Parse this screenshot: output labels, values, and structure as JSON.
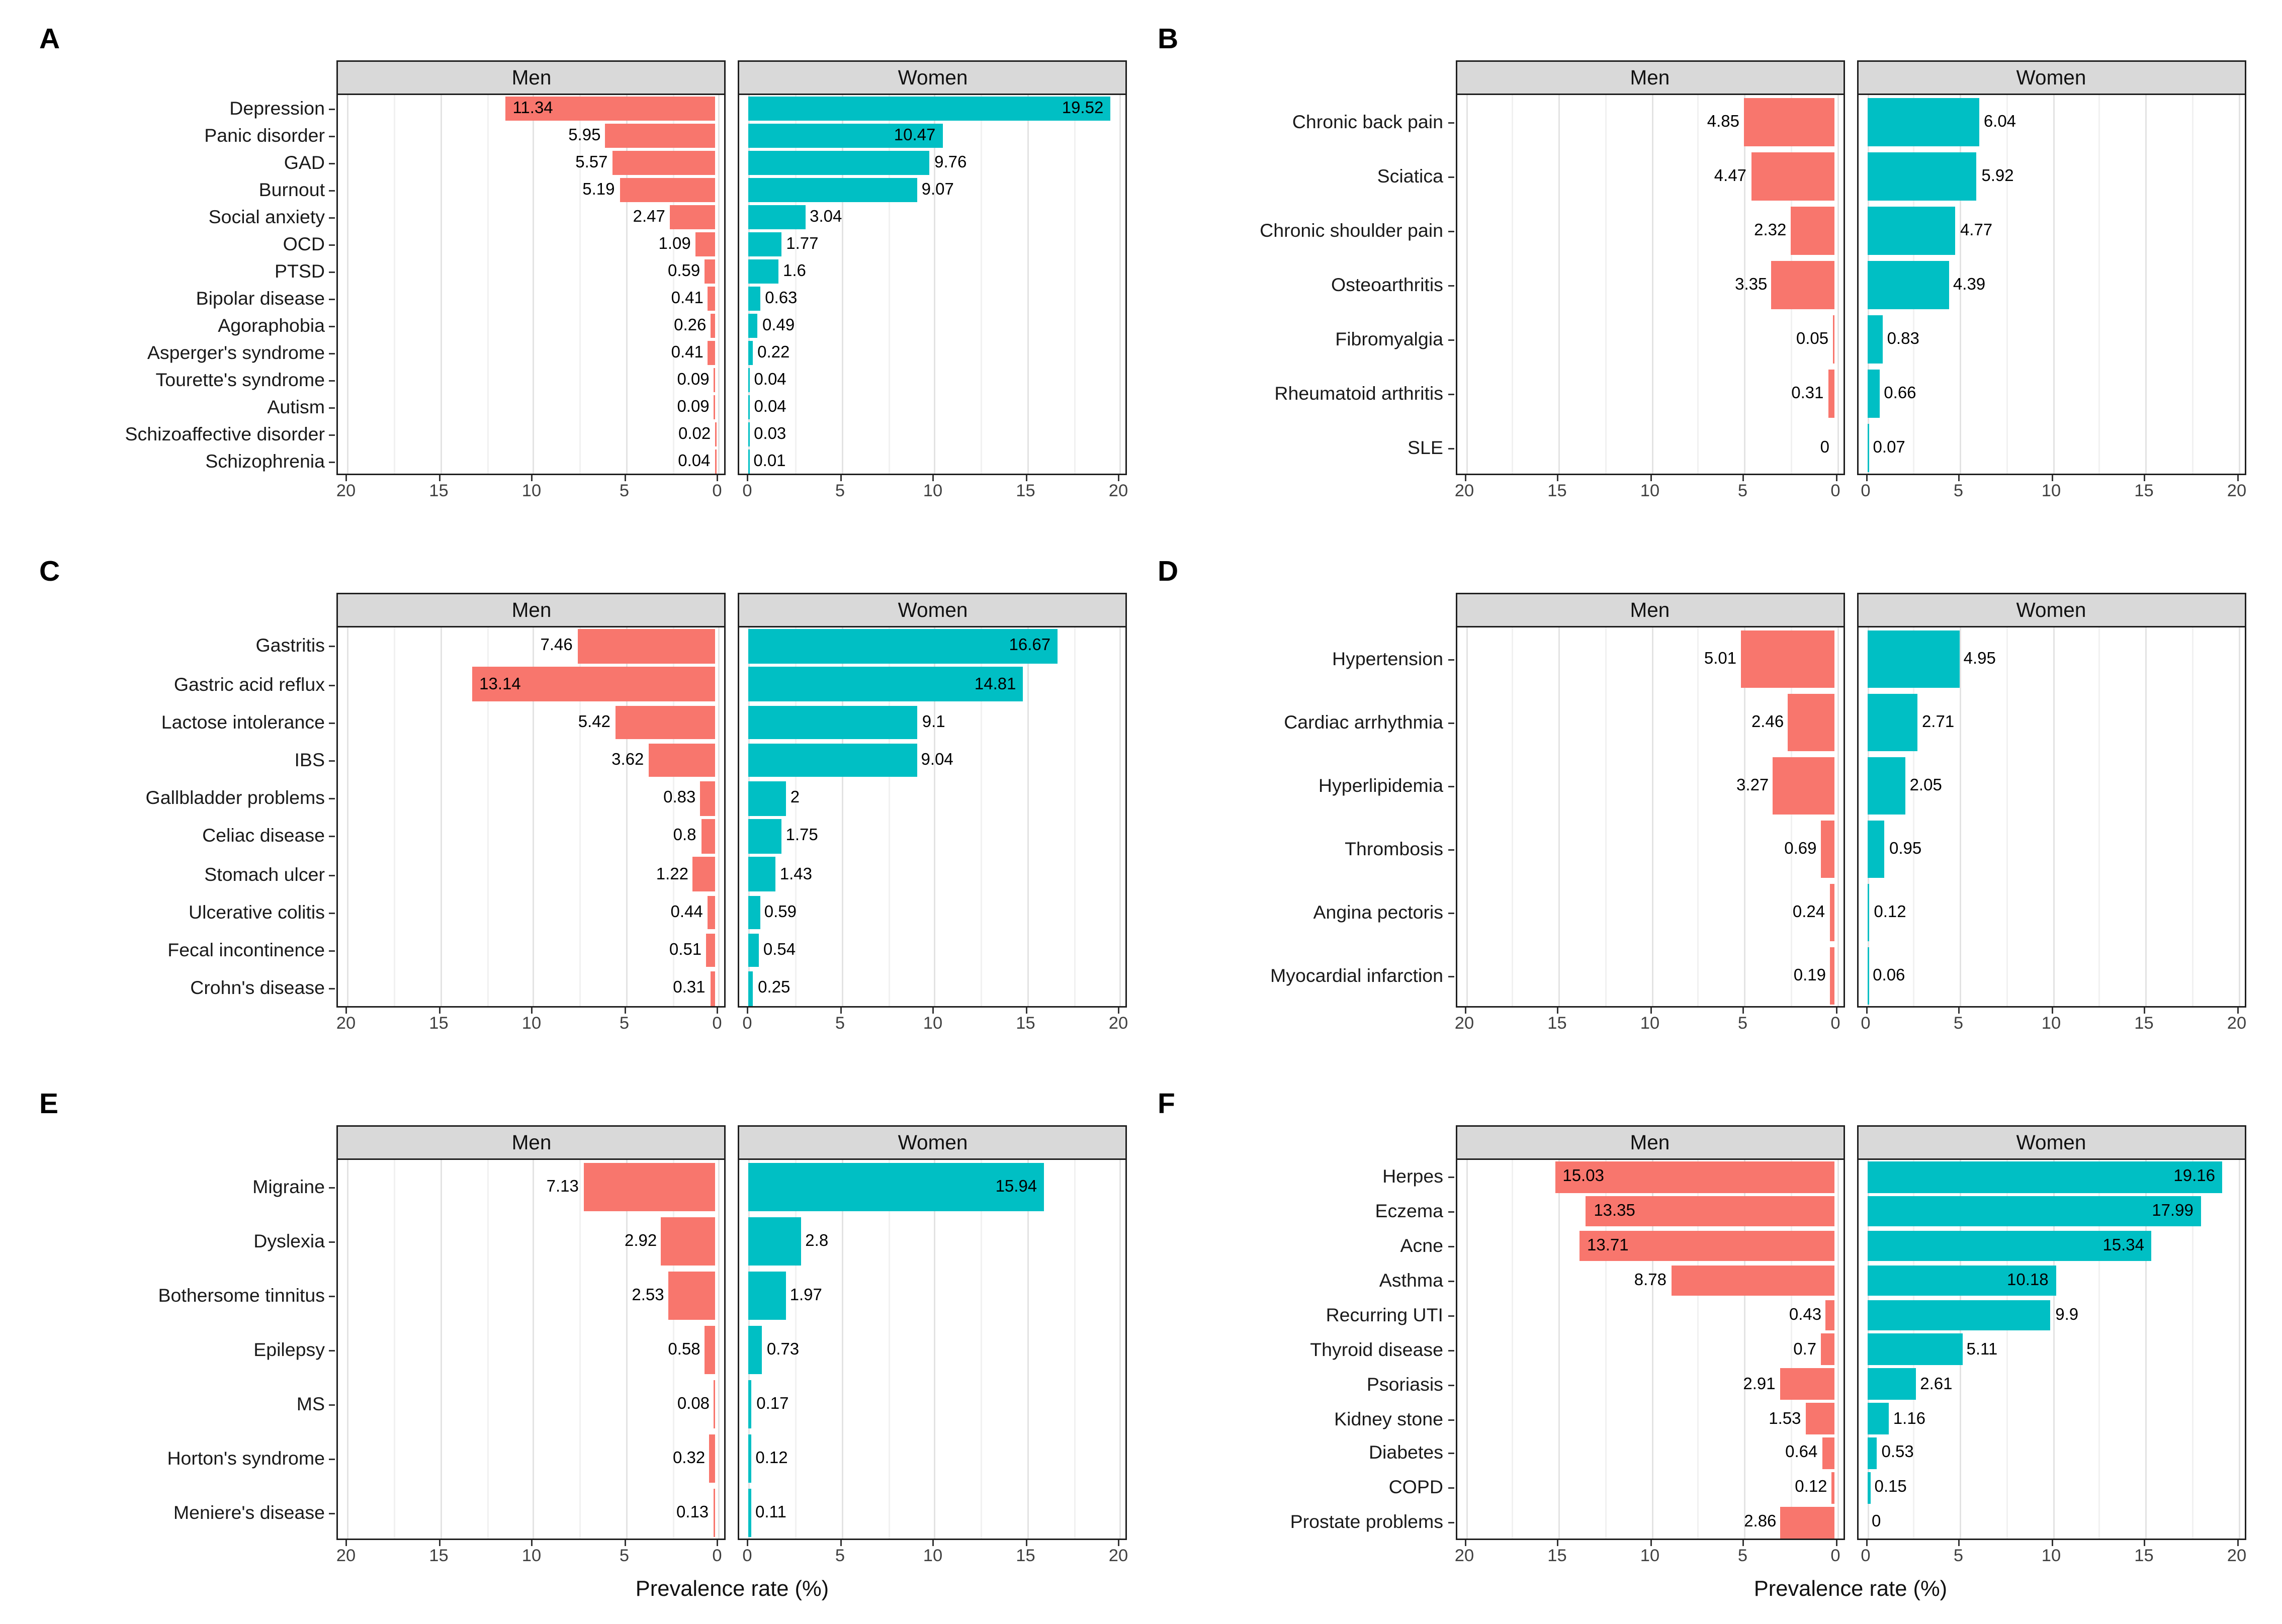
{
  "figure": {
    "axis_title": "Prevalence rate (%)",
    "facet_labels": [
      "Men",
      "Women"
    ],
    "x_ticks": [
      "0",
      "5",
      "10",
      "15",
      "20"
    ],
    "xlim": [
      0,
      20
    ],
    "colors": {
      "men_bar": "#F8766D",
      "women_bar": "#00BFC4",
      "facet_header_bg": "#D9D9D9",
      "panel_border": "#1F1F1F",
      "gridline_major": "#E3E3E3",
      "gridline_minor": "#F1F1F1"
    }
  },
  "chart_data": [
    {
      "type": "bar",
      "panel": "A",
      "facets": [
        "Men",
        "Women"
      ],
      "categories": [
        "Depression",
        "Panic disorder",
        "GAD",
        "Burnout",
        "Social anxiety",
        "OCD",
        "PTSD",
        "Bipolar disease",
        "Agoraphobia",
        "Asperger's syndrome",
        "Tourette's syndrome",
        "Autism",
        "Schizoaffective disorder",
        "Schizophrenia"
      ],
      "series": [
        {
          "name": "Men",
          "values": [
            "11.34",
            "5.95",
            "5.57",
            "5.19",
            "2.47",
            "1.09",
            "0.59",
            "0.41",
            "0.26",
            "0.41",
            "0.09",
            "0.09",
            "0.02",
            "0.04"
          ]
        },
        {
          "name": "Women",
          "values": [
            "19.52",
            "10.47",
            "9.76",
            "9.07",
            "3.04",
            "1.77",
            "1.6",
            "0.63",
            "0.49",
            "0.22",
            "0.04",
            "0.04",
            "0.03",
            "0.01"
          ]
        }
      ]
    },
    {
      "type": "bar",
      "panel": "B",
      "facets": [
        "Men",
        "Women"
      ],
      "categories": [
        "Chronic back pain",
        "Sciatica",
        "Chronic shoulder pain",
        "Osteoarthritis",
        "Fibromyalgia",
        "Rheumatoid arthritis",
        "SLE"
      ],
      "series": [
        {
          "name": "Men",
          "values": [
            "4.85",
            "4.47",
            "2.32",
            "3.35",
            "0.05",
            "0.31",
            "0"
          ]
        },
        {
          "name": "Women",
          "values": [
            "6.04",
            "5.92",
            "4.77",
            "4.39",
            "0.83",
            "0.66",
            "0.07"
          ]
        }
      ]
    },
    {
      "type": "bar",
      "panel": "C",
      "facets": [
        "Men",
        "Women"
      ],
      "categories": [
        "Gastritis",
        "Gastric acid reflux",
        "Lactose intolerance",
        "IBS",
        "Gallbladder problems",
        "Celiac disease",
        "Stomach ulcer",
        "Ulcerative colitis",
        "Fecal incontinence",
        "Crohn's disease"
      ],
      "series": [
        {
          "name": "Men",
          "values": [
            "7.46",
            "13.14",
            "5.42",
            "3.62",
            "0.83",
            "0.8",
            "1.22",
            "0.44",
            "0.51",
            "0.31"
          ]
        },
        {
          "name": "Women",
          "values": [
            "16.67",
            "14.81",
            "9.1",
            "9.04",
            "2",
            "1.75",
            "1.43",
            "0.59",
            "0.54",
            "0.25"
          ]
        }
      ]
    },
    {
      "type": "bar",
      "panel": "D",
      "facets": [
        "Men",
        "Women"
      ],
      "categories": [
        "Hypertension",
        "Cardiac arrhythmia",
        "Hyperlipidemia",
        "Thrombosis",
        "Angina pectoris",
        "Myocardial infarction"
      ],
      "series": [
        {
          "name": "Men",
          "values": [
            "5.01",
            "2.46",
            "3.27",
            "0.69",
            "0.24",
            "0.19"
          ]
        },
        {
          "name": "Women",
          "values": [
            "4.95",
            "2.71",
            "2.05",
            "0.95",
            "0.12",
            "0.06"
          ]
        }
      ]
    },
    {
      "type": "bar",
      "panel": "E",
      "facets": [
        "Men",
        "Women"
      ],
      "categories": [
        "Migraine",
        "Dyslexia",
        "Bothersome tinnitus",
        "Epilepsy",
        "MS",
        "Horton's syndrome",
        "Meniere's disease"
      ],
      "series": [
        {
          "name": "Men",
          "values": [
            "7.13",
            "2.92",
            "2.53",
            "0.58",
            "0.08",
            "0.32",
            "0.13"
          ]
        },
        {
          "name": "Women",
          "values": [
            "15.94",
            "2.8",
            "1.97",
            "0.73",
            "0.17",
            "0.12",
            "0.11"
          ]
        }
      ]
    },
    {
      "type": "bar",
      "panel": "F",
      "facets": [
        "Men",
        "Women"
      ],
      "categories": [
        "Herpes",
        "Eczema",
        "Acne",
        "Asthma",
        "Recurring UTI",
        "Thyroid disease",
        "Psoriasis",
        "Kidney stone",
        "Diabetes",
        "COPD",
        "Prostate problems"
      ],
      "series": [
        {
          "name": "Men",
          "values": [
            "15.03",
            "13.35",
            "13.71",
            "8.78",
            "0.43",
            "0.7",
            "2.91",
            "1.53",
            "0.64",
            "0.12",
            "2.86"
          ]
        },
        {
          "name": "Women",
          "values": [
            "19.16",
            "17.99",
            "15.34",
            "10.18",
            "9.9",
            "5.11",
            "2.61",
            "1.16",
            "0.53",
            "0.15",
            "0"
          ]
        }
      ]
    }
  ]
}
